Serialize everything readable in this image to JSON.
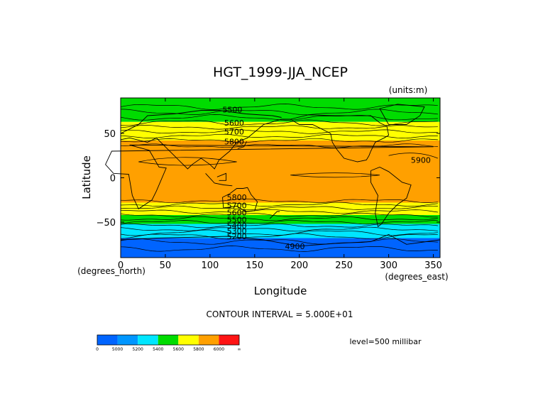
{
  "chart_data": {
    "type": "heatmap",
    "title": "HGT_1999-JJA_NCEP",
    "units_label": "(units:m)",
    "xlabel": "Longitude",
    "ylabel": "Latitude",
    "x_units_label": "(degrees_east)",
    "y_units_label": "(degrees_north)",
    "xlim": [
      0,
      357.5
    ],
    "ylim": [
      -90,
      90
    ],
    "x_ticks": [
      0,
      50,
      100,
      150,
      200,
      250,
      300,
      350
    ],
    "y_ticks": [
      50,
      0,
      -50
    ],
    "contour_interval_text": "CONTOUR INTERVAL = 5.000E+01",
    "level_text": "level=500 millibar",
    "colorbar": {
      "colors": [
        "#0064ff",
        "#0096ff",
        "#00e6ff",
        "#00dc00",
        "#ffff00",
        "#ffa000",
        "#ff1414"
      ],
      "tick_labels": [
        "0",
        "5000",
        "5200",
        "5400",
        "5600",
        "5800",
        "6000",
        "∞"
      ]
    },
    "latitude_bands": [
      {
        "lat_from": 90,
        "lat_to": 63,
        "color": "#00dc00"
      },
      {
        "lat_from": 63,
        "lat_to": 42,
        "color": "#ffff00"
      },
      {
        "lat_from": 42,
        "lat_to": -28,
        "color": "#ffa000"
      },
      {
        "lat_from": -28,
        "lat_to": -42,
        "color": "#ffff00"
      },
      {
        "lat_from": -42,
        "lat_to": -52,
        "color": "#00dc00"
      },
      {
        "lat_from": -52,
        "lat_to": -68,
        "color": "#00e6ff"
      },
      {
        "lat_from": -68,
        "lat_to": -90,
        "color": "#0064ff"
      }
    ],
    "contour_labels": [
      {
        "text": "5500",
        "lon": 125,
        "lat": 77
      },
      {
        "text": "5600",
        "lon": 127,
        "lat": 62
      },
      {
        "text": "5700",
        "lon": 127,
        "lat": 52
      },
      {
        "text": "5800",
        "lon": 127,
        "lat": 41
      },
      {
        "text": "5900",
        "lon": 336,
        "lat": 20
      },
      {
        "text": "5800",
        "lon": 130,
        "lat": -22
      },
      {
        "text": "5700",
        "lon": 130,
        "lat": -31
      },
      {
        "text": "5600",
        "lon": 130,
        "lat": -39
      },
      {
        "text": "5500",
        "lon": 130,
        "lat": -47
      },
      {
        "text": "5400",
        "lon": 130,
        "lat": -54
      },
      {
        "text": "5300",
        "lon": 130,
        "lat": -60
      },
      {
        "text": "5200",
        "lon": 130,
        "lat": -66
      },
      {
        "text": "4900",
        "lon": 195,
        "lat": -77
      }
    ]
  }
}
